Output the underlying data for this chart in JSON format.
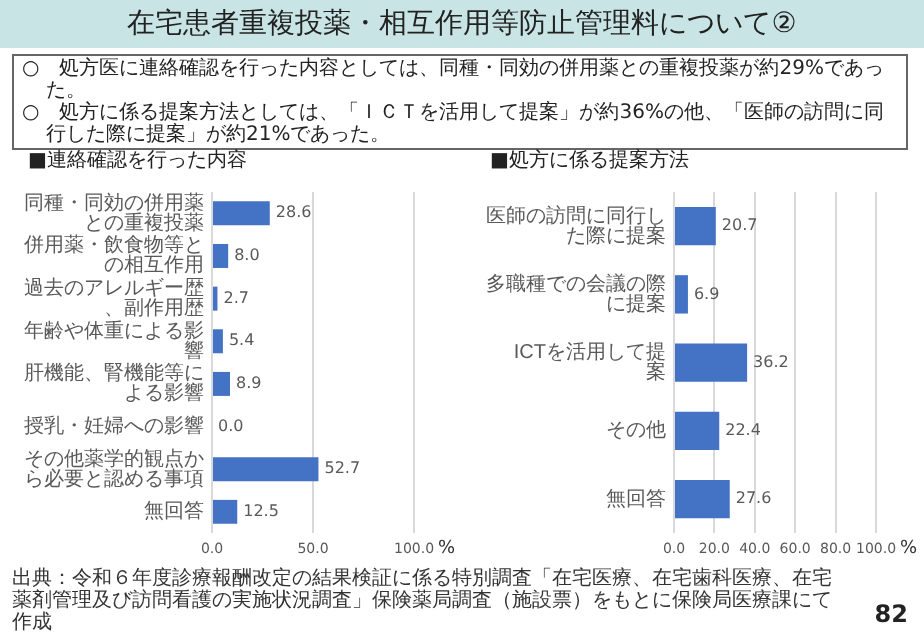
{
  "chart_data": [
    {
      "type": "bar",
      "orientation": "horizontal",
      "title": "■連絡確認を行った内容",
      "xlabel": "%",
      "categories": [
        "同種・同効の併用薬との重複投薬",
        "併用薬・飲食物等との相互作用",
        "過去のアレルギー歴、副作用歴",
        "年齢や体重による影響",
        "肝機能、腎機能等による影響",
        "授乳・妊婦への影響",
        "その他薬学的観点から必要と認める事項",
        "無回答"
      ],
      "values": [
        28.6,
        8.0,
        2.7,
        5.4,
        8.9,
        0.0,
        52.7,
        12.5
      ],
      "value_labels": [
        "28.6",
        "8.0",
        "2.7",
        "5.4",
        "8.9",
        "0.0",
        "52.7",
        "12.5"
      ],
      "color": "#4472c4",
      "xlim": [
        0,
        100
      ],
      "xticks": [
        {
          "value": 0,
          "label": "0.0"
        },
        {
          "value": 50,
          "label": "50.0"
        },
        {
          "value": 100,
          "label": "100.0"
        }
      ],
      "grid": "x",
      "annotations": [
        "在宅患者重複投薬・相互作用等防止管理料について②",
        "○　処方医に連絡確認を行った内容としては、同種・同効の併用薬との重複投薬が約29%であった。",
        "○　処方に係る提案方法としては、「ＩＣＴを活用して提案」が約36%の他、「医師の訪問に同行した際に提案」が約21%であった。",
        "出典：令和６年度診療報酬改定の結果検証に係る特別調査「在宅医療、在宅歯科医療、在宅薬剤管理及び訪問看護の実施状況調査」保険薬局調査（施設票）をもとに保険局医療課にて作成",
        "82"
      ]
    },
    {
      "type": "bar",
      "orientation": "horizontal",
      "title": "■処方に係る提案方法",
      "xlabel": "%",
      "categories": [
        "医師の訪問に同行した際に提案",
        "多職種での会議の際に提案",
        "ICTを活用して提案",
        "その他",
        "無回答"
      ],
      "values": [
        20.7,
        6.9,
        36.2,
        22.4,
        27.6
      ],
      "value_labels": [
        "20.7",
        "6.9",
        "36.2",
        "22.4",
        "27.6"
      ],
      "color": "#4472c4",
      "xlim": [
        0,
        100
      ],
      "xticks": [
        {
          "value": 0,
          "label": "0.0"
        },
        {
          "value": 20,
          "label": "20.0"
        },
        {
          "value": 40,
          "label": "40.0"
        },
        {
          "value": 60,
          "label": "60.0"
        },
        {
          "value": 80,
          "label": "80.0"
        },
        {
          "value": 100,
          "label": "100.0"
        }
      ],
      "grid": "x"
    }
  ]
}
